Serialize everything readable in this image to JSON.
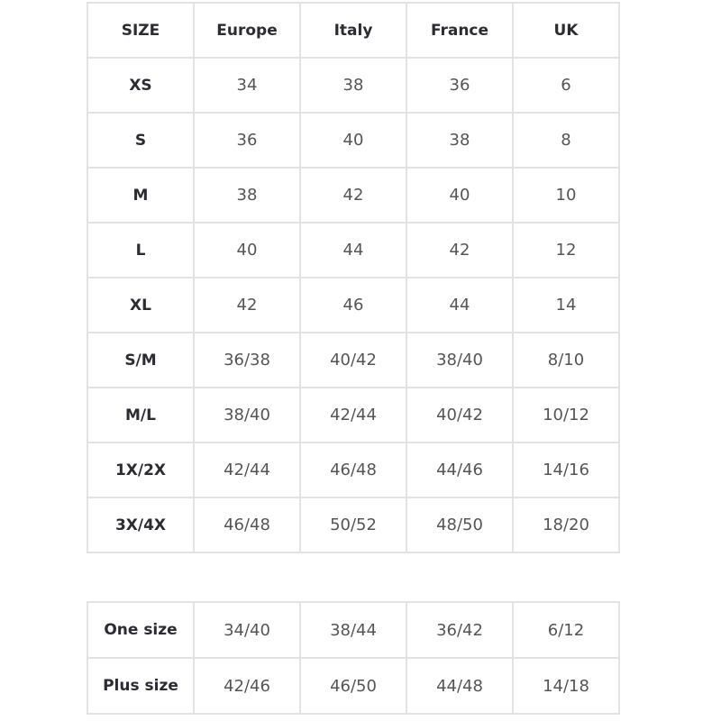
{
  "size_table": {
    "headers": [
      "SIZE",
      "Europe",
      "Italy",
      "France",
      "UK"
    ],
    "rows": [
      [
        "XS",
        "34",
        "38",
        "36",
        "6"
      ],
      [
        "S",
        "36",
        "40",
        "38",
        "8"
      ],
      [
        "M",
        "38",
        "42",
        "40",
        "10"
      ],
      [
        "L",
        "40",
        "44",
        "42",
        "12"
      ],
      [
        "XL",
        "42",
        "46",
        "44",
        "14"
      ],
      [
        "S/M",
        "36/38",
        "40/42",
        "38/40",
        "8/10"
      ],
      [
        "M/L",
        "38/40",
        "42/44",
        "40/42",
        "10/12"
      ],
      [
        "1X/2X",
        "42/44",
        "46/48",
        "44/46",
        "14/16"
      ],
      [
        "3X/4X",
        "46/48",
        "50/52",
        "48/50",
        "18/20"
      ]
    ]
  },
  "range_table": {
    "rows": [
      [
        "One size",
        "34/40",
        "38/44",
        "36/42",
        "6/12"
      ],
      [
        "Plus size",
        "42/46",
        "46/50",
        "44/48",
        "14/18"
      ]
    ]
  }
}
